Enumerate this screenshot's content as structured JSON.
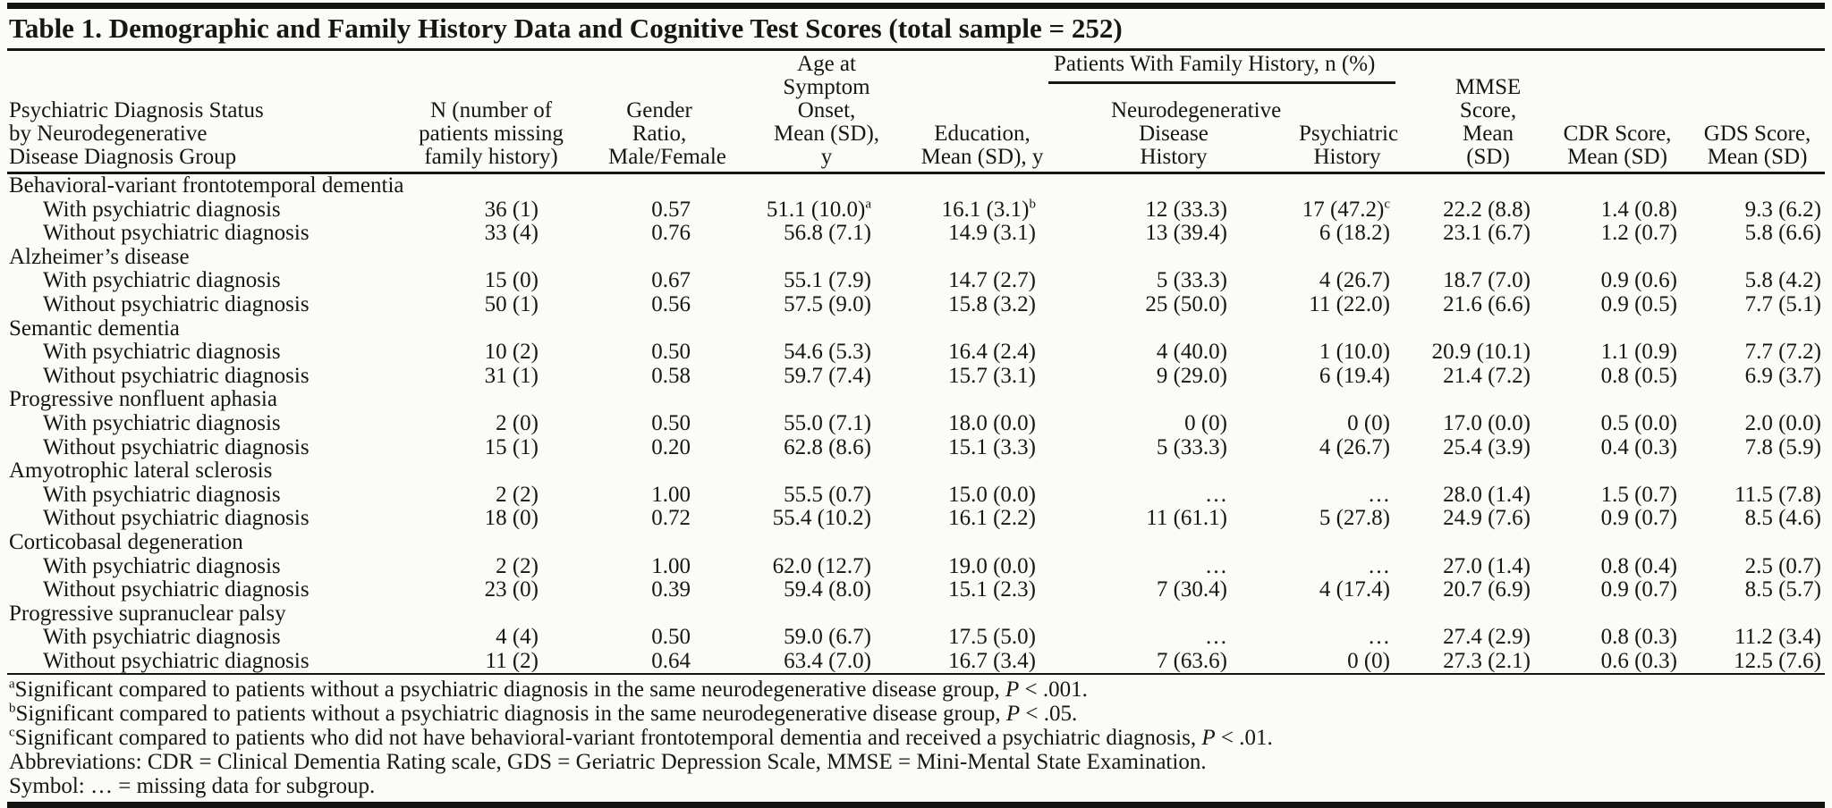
{
  "table": {
    "title": "Table 1. Demographic and Family History Data and Cognitive Test Scores (total sample = 252)",
    "columns": {
      "stub": "Psychiatric Diagnosis Status\nby Neurodegenerative\nDisease Diagnosis Group",
      "n": "N (number of\npatients missing\nfamily history)",
      "gender": "Gender Ratio,\nMale/Female",
      "age": "Age at\nSymptom Onset,\nMean (SD), y",
      "education": "Education,\nMean (SD), y",
      "family_spanner": "Patients With Family History, n (%)",
      "neuro_history": "Neurodegenerative\nDisease History",
      "psych_history": "Psychiatric\nHistory",
      "mmse": "MMSE Score,\nMean (SD)",
      "cdr": "CDR Score,\nMean (SD)",
      "gds": "GDS Score,\nMean (SD)"
    },
    "rows": [
      {
        "type": "group",
        "label": "Behavioral-variant frontotemporal dementia"
      },
      {
        "type": "data",
        "label": "With psychiatric diagnosis",
        "values": [
          "36 (1)",
          "0.57",
          "51.1 (10.0)^a",
          "16.1 (3.1)^b",
          "12 (33.3)",
          "17 (47.2)^c",
          "22.2 (8.8)",
          "1.4 (0.8)",
          "9.3 (6.2)"
        ]
      },
      {
        "type": "data",
        "label": "Without psychiatric diagnosis",
        "values": [
          "33 (4)",
          "0.76",
          "56.8 (7.1)",
          "14.9 (3.1)",
          "13 (39.4)",
          "6 (18.2)",
          "23.1 (6.7)",
          "1.2 (0.7)",
          "5.8 (6.6)"
        ]
      },
      {
        "type": "group",
        "label": "Alzheimer’s disease"
      },
      {
        "type": "data",
        "label": "With psychiatric diagnosis",
        "values": [
          "15 (0)",
          "0.67",
          "55.1 (7.9)",
          "14.7 (2.7)",
          "5 (33.3)",
          "4 (26.7)",
          "18.7 (7.0)",
          "0.9 (0.6)",
          "5.8 (4.2)"
        ]
      },
      {
        "type": "data",
        "label": "Without psychiatric diagnosis",
        "values": [
          "50 (1)",
          "0.56",
          "57.5 (9.0)",
          "15.8 (3.2)",
          "25 (50.0)",
          "11 (22.0)",
          "21.6 (6.6)",
          "0.9 (0.5)",
          "7.7 (5.1)"
        ]
      },
      {
        "type": "group",
        "label": "Semantic dementia"
      },
      {
        "type": "data",
        "label": "With psychiatric diagnosis",
        "values": [
          "10 (2)",
          "0.50",
          "54.6 (5.3)",
          "16.4 (2.4)",
          "4 (40.0)",
          "1 (10.0)",
          "20.9 (10.1)",
          "1.1 (0.9)",
          "7.7 (7.2)"
        ]
      },
      {
        "type": "data",
        "label": "Without psychiatric diagnosis",
        "values": [
          "31 (1)",
          "0.58",
          "59.7 (7.4)",
          "15.7 (3.1)",
          "9 (29.0)",
          "6 (19.4)",
          "21.4 (7.2)",
          "0.8 (0.5)",
          "6.9 (3.7)"
        ]
      },
      {
        "type": "group",
        "label": "Progressive nonfluent aphasia"
      },
      {
        "type": "data",
        "label": "With psychiatric diagnosis",
        "values": [
          "2 (0)",
          "0.50",
          "55.0 (7.1)",
          "18.0 (0.0)",
          "0 (0)",
          "0 (0)",
          "17.0 (0.0)",
          "0.5 (0.0)",
          "2.0 (0.0)"
        ]
      },
      {
        "type": "data",
        "label": "Without psychiatric diagnosis",
        "values": [
          "15 (1)",
          "0.20",
          "62.8 (8.6)",
          "15.1 (3.3)",
          "5 (33.3)",
          "4 (26.7)",
          "25.4 (3.9)",
          "0.4 (0.3)",
          "7.8 (5.9)"
        ]
      },
      {
        "type": "group",
        "label": "Amyotrophic lateral sclerosis"
      },
      {
        "type": "data",
        "label": "With psychiatric diagnosis",
        "values": [
          "2 (2)",
          "1.00",
          "55.5 (0.7)",
          "15.0 (0.0)",
          "…",
          "…",
          "28.0 (1.4)",
          "1.5 (0.7)",
          "11.5 (7.8)"
        ]
      },
      {
        "type": "data",
        "label": "Without psychiatric diagnosis",
        "values": [
          "18 (0)",
          "0.72",
          "55.4 (10.2)",
          "16.1 (2.2)",
          "11 (61.1)",
          "5 (27.8)",
          "24.9 (7.6)",
          "0.9 (0.7)",
          "8.5 (4.6)"
        ]
      },
      {
        "type": "group",
        "label": "Corticobasal degeneration"
      },
      {
        "type": "data",
        "label": "With psychiatric diagnosis",
        "values": [
          "2 (2)",
          "1.00",
          "62.0 (12.7)",
          "19.0 (0.0)",
          "…",
          "…",
          "27.0 (1.4)",
          "0.8 (0.4)",
          "2.5 (0.7)"
        ]
      },
      {
        "type": "data",
        "label": "Without psychiatric diagnosis",
        "values": [
          "23 (0)",
          "0.39",
          "59.4 (8.0)",
          "15.1 (2.3)",
          "7 (30.4)",
          "4 (17.4)",
          "20.7 (6.9)",
          "0.9 (0.7)",
          "8.5 (5.7)"
        ]
      },
      {
        "type": "group",
        "label": "Progressive supranuclear palsy"
      },
      {
        "type": "data",
        "label": "With psychiatric diagnosis",
        "values": [
          "4 (4)",
          "0.50",
          "59.0 (6.7)",
          "17.5 (5.0)",
          "…",
          "…",
          "27.4 (2.9)",
          "0.8 (0.3)",
          "11.2 (3.4)"
        ]
      },
      {
        "type": "data",
        "label": "Without psychiatric diagnosis",
        "values": [
          "11 (2)",
          "0.64",
          "63.4 (7.0)",
          "16.7 (3.4)",
          "7 (63.6)",
          "0 (0)",
          "27.3 (2.1)",
          "0.6 (0.3)",
          "12.5 (7.6)"
        ]
      }
    ],
    "footnotes": [
      {
        "sup": "a",
        "text": "Significant compared to patients without a psychiatric diagnosis in the same neurodegenerative disease group, P < .001."
      },
      {
        "sup": "b",
        "text": "Significant compared to patients without a psychiatric diagnosis in the same neurodegenerative disease group, P < .05."
      },
      {
        "sup": "c",
        "text": "Significant compared to patients who did not have behavioral-variant frontotemporal dementia and received a psychiatric diagnosis, P < .01."
      },
      {
        "sup": "",
        "text": "Abbreviations: CDR = Clinical Dementia Rating scale, GDS = Geriatric Depression Scale, MMSE = Mini-Mental State Examination."
      },
      {
        "sup": "",
        "text": "Symbol: … = missing data for subgroup."
      }
    ],
    "colors": {
      "background": "#fbfbf8",
      "text": "#161616",
      "rule": "#121212"
    }
  }
}
